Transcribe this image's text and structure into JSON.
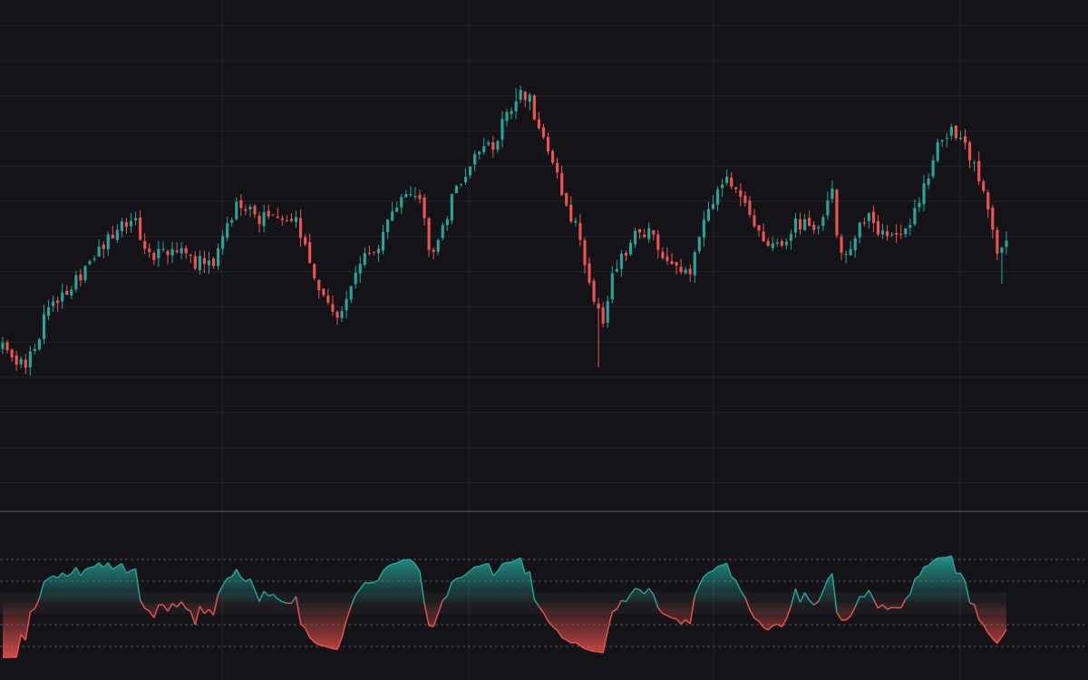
{
  "theme": {
    "background": "#141418",
    "grid": "#232329",
    "separator": "#3a3a42",
    "up": "#26a69a",
    "down": "#ef5350",
    "level_line": "#55555e"
  },
  "chart_data": [
    {
      "type": "candlestick",
      "title": "",
      "xlabel": "",
      "ylabel": "",
      "ylim": [
        0,
        100
      ],
      "grid": true,
      "axis_labels_shown": false,
      "knots": [
        [
          0,
          30
        ],
        [
          10,
          30
        ],
        [
          25,
          25
        ],
        [
          40,
          32
        ],
        [
          55,
          42
        ],
        [
          80,
          48
        ],
        [
          110,
          58
        ],
        [
          145,
          67
        ],
        [
          165,
          56
        ],
        [
          200,
          56
        ],
        [
          235,
          52
        ],
        [
          260,
          70
        ],
        [
          290,
          66
        ],
        [
          325,
          66
        ],
        [
          345,
          52
        ],
        [
          370,
          38
        ],
        [
          395,
          54
        ],
        [
          420,
          60
        ],
        [
          445,
          73
        ],
        [
          465,
          70
        ],
        [
          475,
          54
        ],
        [
          490,
          66
        ],
        [
          515,
          80
        ],
        [
          545,
          87
        ],
        [
          570,
          100
        ],
        [
          585,
          98
        ],
        [
          600,
          87
        ],
        [
          620,
          73
        ],
        [
          640,
          60
        ],
        [
          655,
          44
        ],
        [
          665,
          36
        ],
        [
          675,
          50
        ],
        [
          700,
          62
        ],
        [
          715,
          63
        ],
        [
          730,
          56
        ],
        [
          750,
          51
        ],
        [
          760,
          50
        ],
        [
          780,
          68
        ],
        [
          795,
          77
        ],
        [
          815,
          74
        ],
        [
          840,
          62
        ],
        [
          860,
          57
        ],
        [
          880,
          65
        ],
        [
          900,
          62
        ],
        [
          920,
          75
        ],
        [
          925,
          55
        ],
        [
          940,
          60
        ],
        [
          960,
          67
        ],
        [
          980,
          59
        ],
        [
          1000,
          63
        ],
        [
          1020,
          76
        ],
        [
          1035,
          87
        ],
        [
          1050,
          90
        ],
        [
          1065,
          87
        ],
        [
          1075,
          80
        ],
        [
          1090,
          70
        ],
        [
          1100,
          58
        ],
        [
          1110,
          60
        ]
      ],
      "candle_count": 220,
      "seed": 20240611
    },
    {
      "type": "oscillator",
      "title": "",
      "ylim": [
        0,
        100
      ],
      "midline": 50,
      "levels": [
        90,
        70,
        30,
        10
      ],
      "band": [
        40,
        60
      ],
      "fill_up_color": "#26a69a",
      "fill_down_color": "#ef5350",
      "axis_labels_shown": false
    }
  ]
}
